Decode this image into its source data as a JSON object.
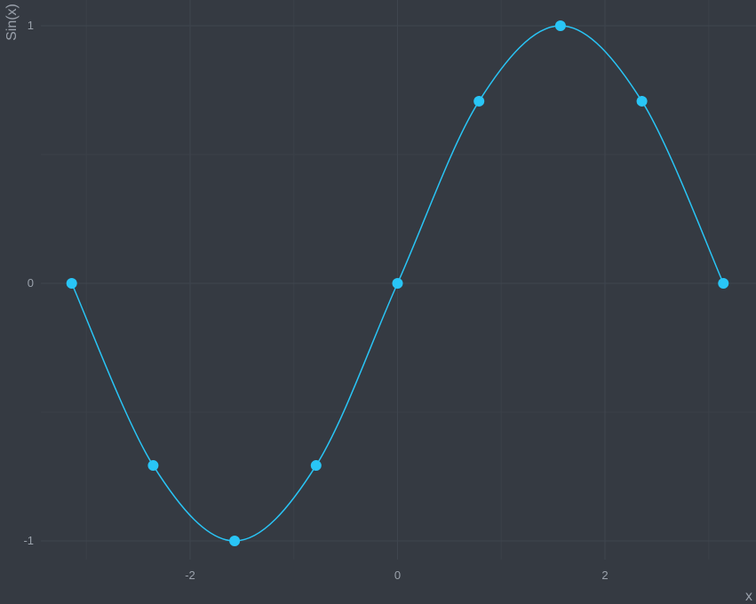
{
  "chart_data": {
    "type": "line",
    "title": "",
    "xlabel": "x",
    "ylabel": "Sin(x)",
    "xlim": [
      -3.5,
      3.45
    ],
    "ylim": [
      -1.1,
      1.1
    ],
    "x_ticks": [
      -2,
      0,
      2
    ],
    "y_ticks": [
      -1,
      0,
      1
    ],
    "x_tick_labels": [
      "-2",
      "0",
      "2"
    ],
    "y_tick_labels": [
      "-1",
      "0",
      "1"
    ],
    "minor_grid_x": [
      -3,
      -1,
      1,
      3
    ],
    "minor_grid_y": [
      -0.5,
      0.5
    ],
    "grid": true,
    "legend": "none",
    "series": [
      {
        "x": [
          -3.14159,
          -2.35619,
          -1.5708,
          -0.7854,
          0,
          0.7854,
          1.5708,
          2.35619,
          3.14159
        ],
        "y": [
          0,
          -0.7071,
          -1,
          -0.7071,
          0,
          0.7071,
          1,
          0.7071,
          0
        ],
        "color": "#29c5f6",
        "curve": "smooth"
      }
    ]
  },
  "colors": {
    "background": "#353a42",
    "grid": "#3f454e",
    "text": "#9aa1ab",
    "series": "#29c5f6"
  }
}
